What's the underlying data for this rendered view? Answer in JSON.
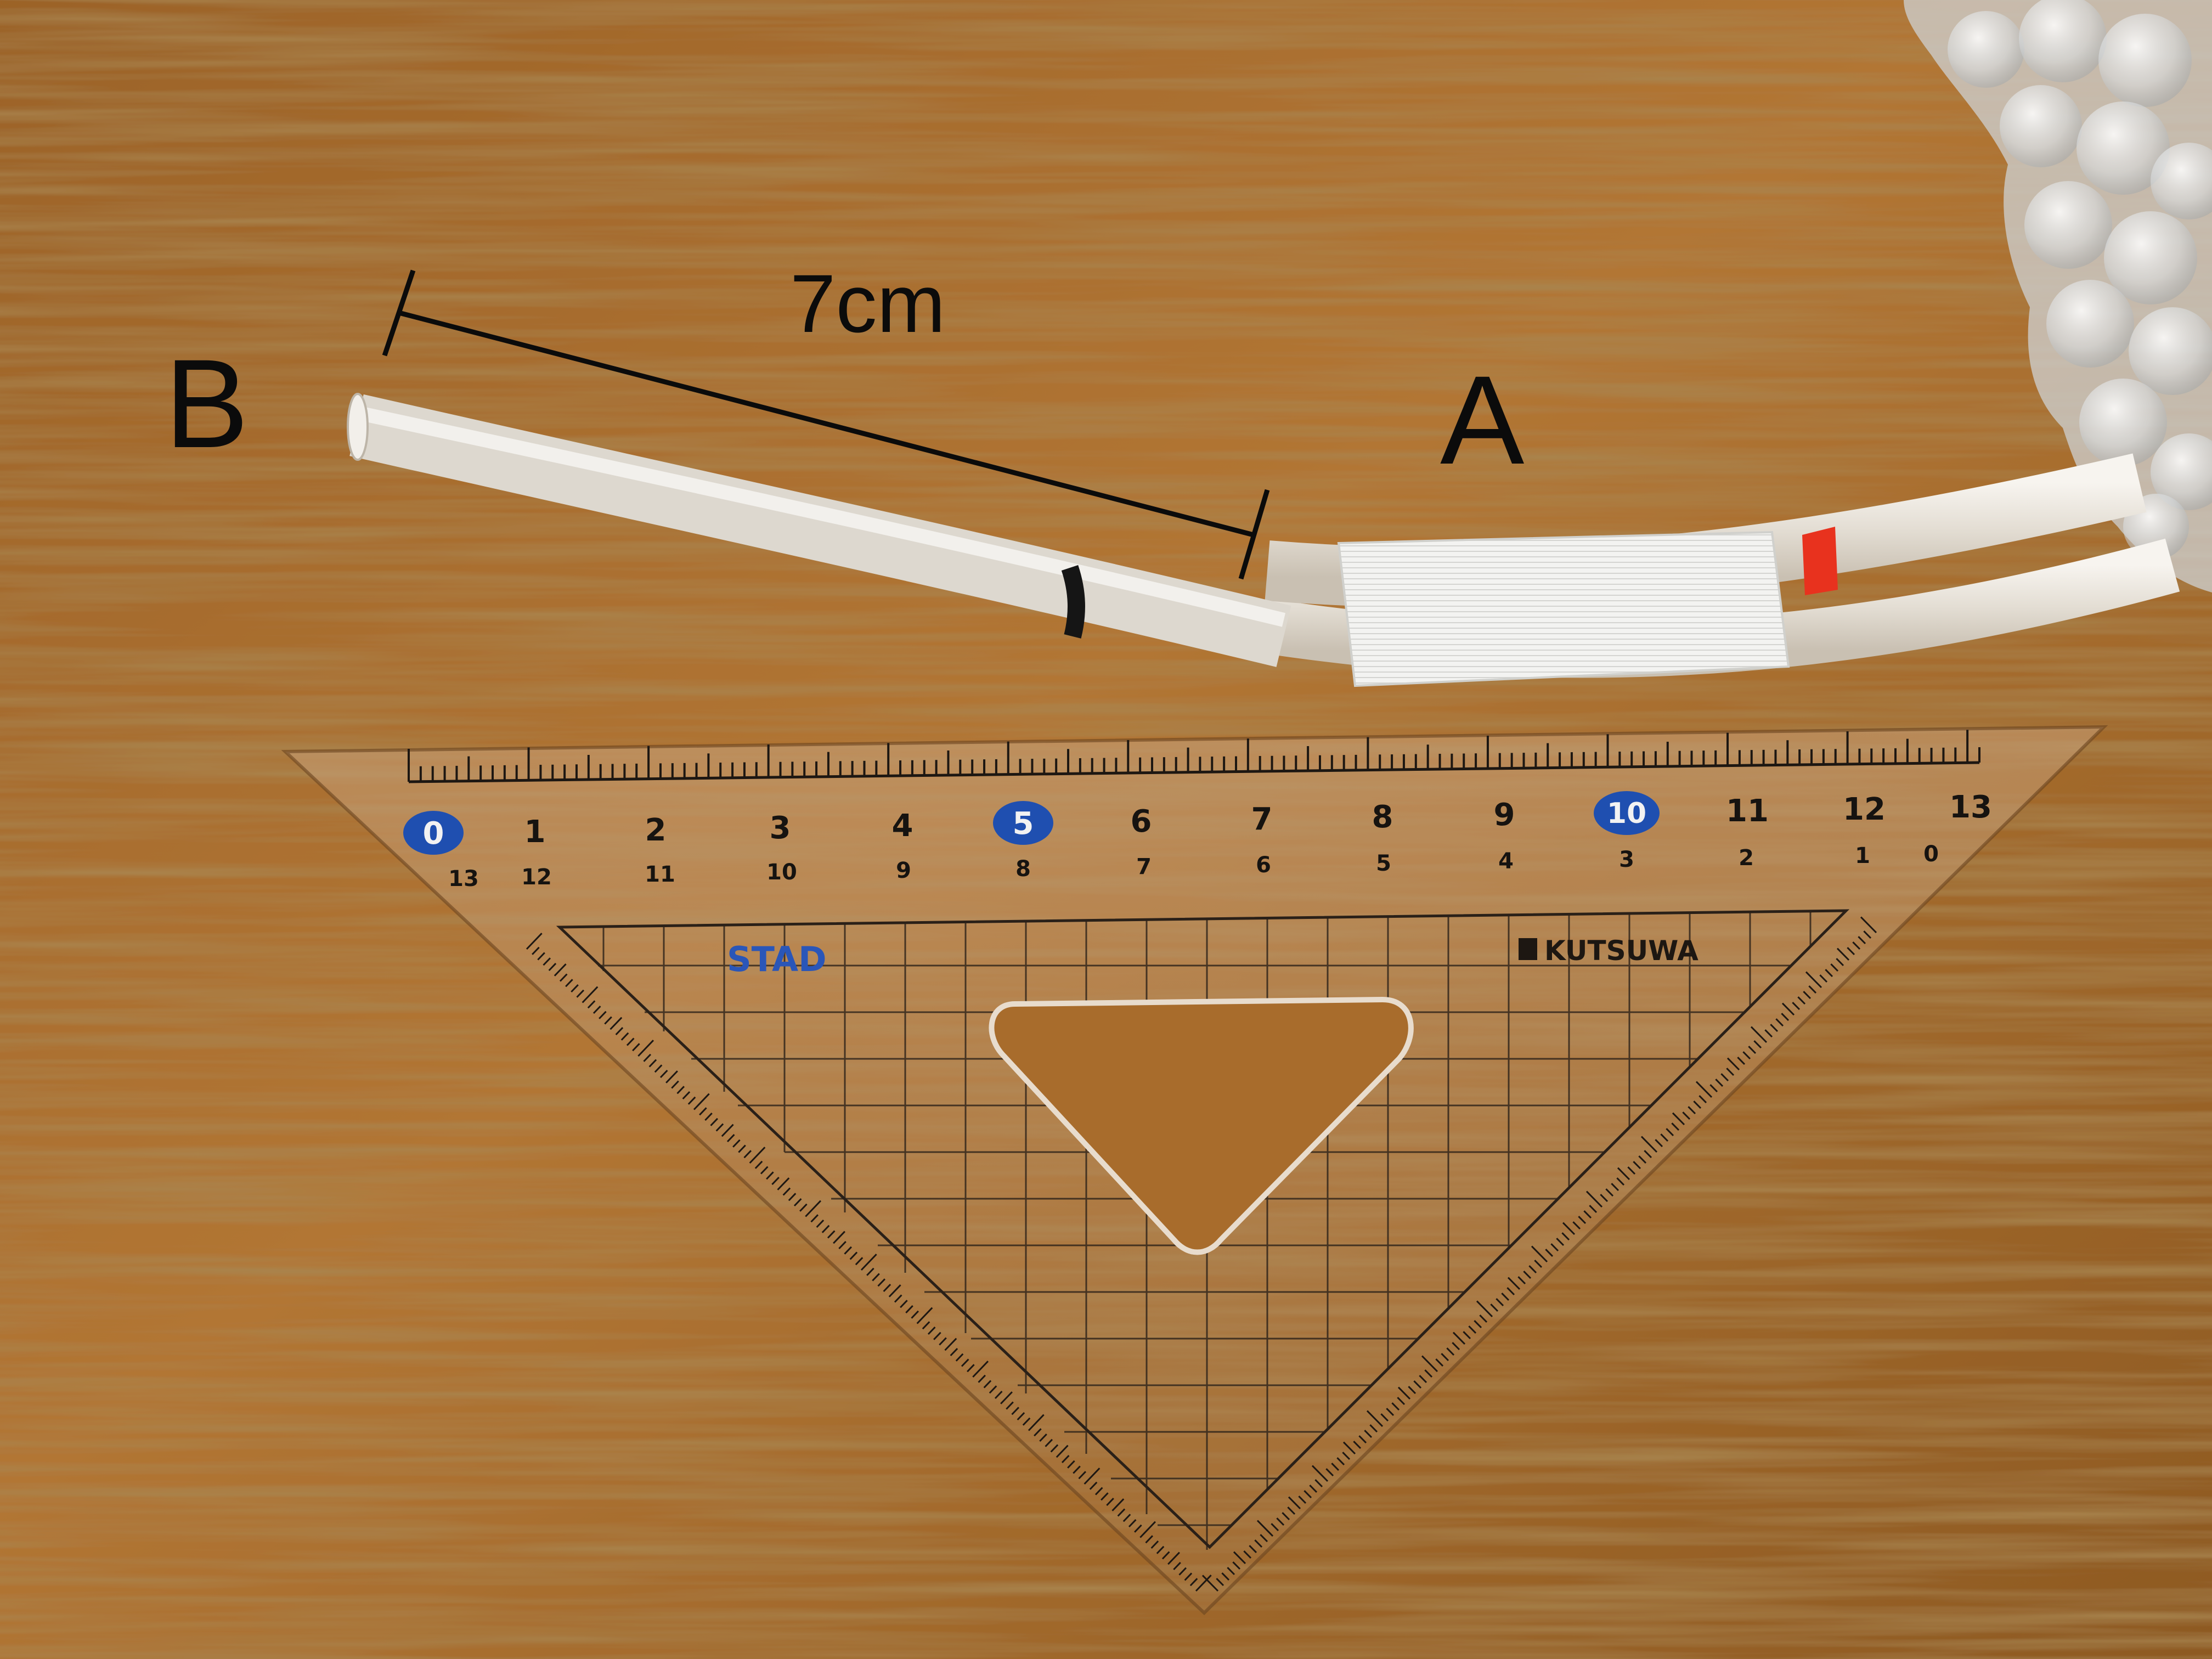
{
  "annotations": {
    "measurement_label": "7cm",
    "label_b": "B",
    "label_a": "A"
  },
  "ruler": {
    "top_scale": [
      "0",
      "1",
      "2",
      "3",
      "4",
      "5",
      "6",
      "7",
      "8",
      "9",
      "10",
      "11",
      "12",
      "13"
    ],
    "bottom_scale": [
      "13",
      "12",
      "11",
      "10",
      "9",
      "8",
      "7",
      "6",
      "5",
      "4",
      "3",
      "2",
      "1",
      "0"
    ],
    "highlighted_numbers": [
      "0",
      "5",
      "10"
    ],
    "brand_left": "STAD",
    "brand_right": "KUTSUWA"
  },
  "colors": {
    "wood": "#a06a2e",
    "wood_dark": "#6e4216",
    "tube": "#ece8e2",
    "mesh_wrap": "#f4f4f2",
    "red_mark": "#e8321e",
    "black_mark": "#151515",
    "ruler_highlight": "#1f4fb0",
    "brand_blue": "#2a56b8"
  }
}
